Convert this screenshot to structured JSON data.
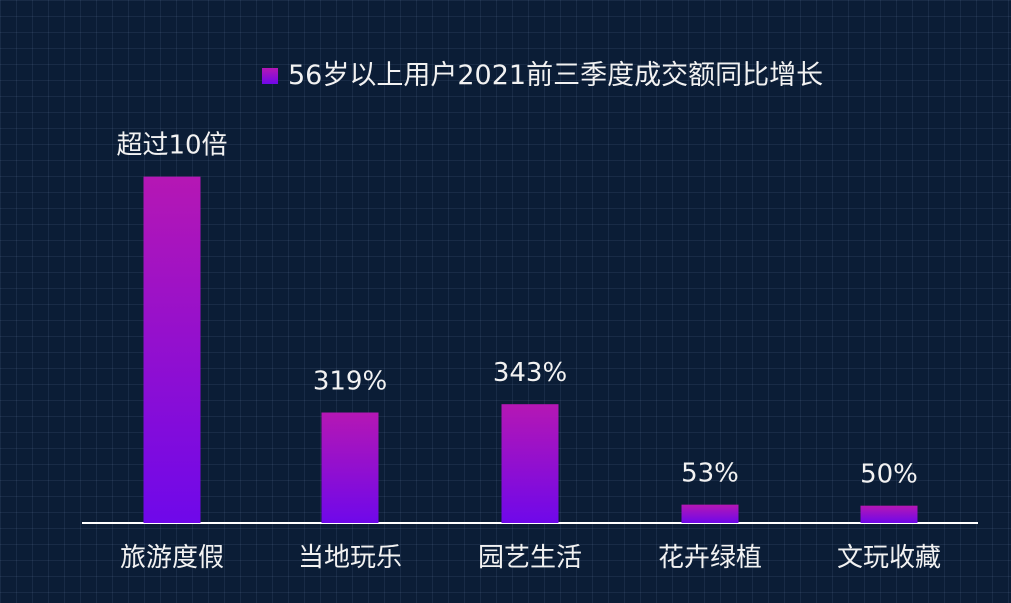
{
  "chart_data": {
    "type": "bar",
    "categories": [
      "旅游度假",
      "当地玩乐",
      "园艺生活",
      "花卉绿植",
      "文玩收藏"
    ],
    "series": [
      {
        "name": "56岁以上用户2021前三季度成交额同比增长",
        "values": [
          1000,
          319,
          343,
          53,
          50
        ]
      }
    ],
    "data_labels": [
      "超过10倍",
      "319%",
      "343%",
      "53%",
      "50%"
    ],
    "unit": "%",
    "ylim": [
      0,
      1100
    ],
    "legend_position": "top-center",
    "grid": true,
    "colors": {
      "background": "#0b1d36",
      "grid": "#30435f",
      "axis": "#ffffff",
      "text": "#f2f2f2",
      "bar_top": "#b517b4",
      "bar_bottom": "#6f08ea"
    }
  }
}
